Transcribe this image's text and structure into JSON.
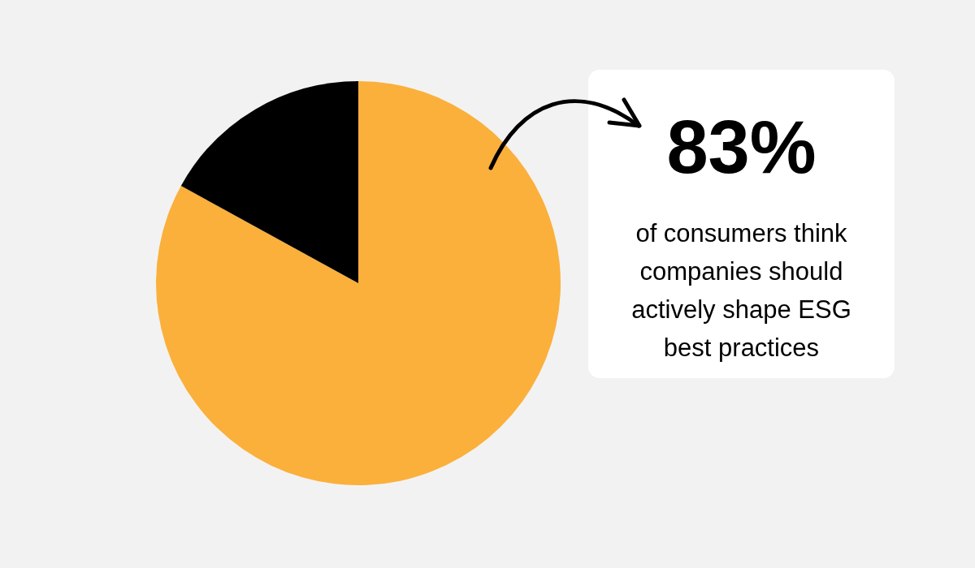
{
  "chart_data": {
    "type": "pie",
    "categories": [
      null,
      null
    ],
    "values": [
      83,
      17
    ],
    "colors": [
      "#fbb03b",
      "#000000"
    ],
    "value_labels": [
      "83%",
      null
    ],
    "annotations": [
      "of consumers think companies should actively shape ESG best practices"
    ]
  }
}
